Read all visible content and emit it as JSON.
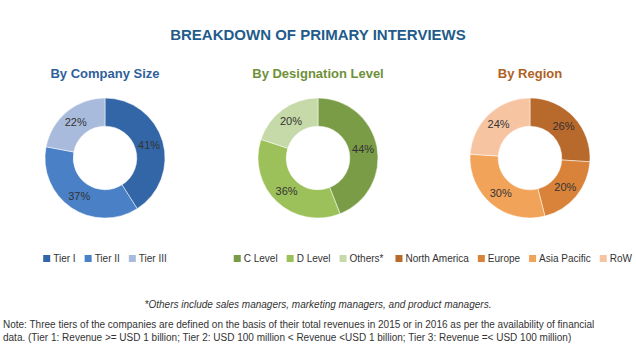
{
  "title": "BREAKDOWN OF PRIMARY INTERVIEWS",
  "chart_data": [
    {
      "type": "donut",
      "title": "By Company Size",
      "categories": [
        "Tier I",
        "Tier II",
        "Tier III"
      ],
      "values": [
        41,
        37,
        22
      ],
      "value_labels": [
        "41%",
        "37%",
        "22%"
      ],
      "colors": [
        "#3366a6",
        "#4a80c6",
        "#a9bbdd"
      ],
      "data_labels": true,
      "legend": "bottom"
    },
    {
      "type": "donut",
      "title": "By Designation Level",
      "categories": [
        "C Level",
        "D Level",
        "Others*"
      ],
      "values": [
        44,
        36,
        20
      ],
      "value_labels": [
        "44%",
        "36%",
        "20%"
      ],
      "colors": [
        "#7a9c46",
        "#9dc15a",
        "#c6d9a8"
      ],
      "data_labels": true,
      "legend": "bottom"
    },
    {
      "type": "donut",
      "title": "By Region",
      "categories": [
        "North America",
        "Europe",
        "Asia Pacific",
        "RoW"
      ],
      "values": [
        26,
        20,
        30,
        24
      ],
      "value_labels": [
        "26%",
        "20%",
        "30%",
        "24%"
      ],
      "colors": [
        "#b8692c",
        "#d9823a",
        "#f2a35a",
        "#f7c4a2"
      ],
      "data_labels": true,
      "legend": "bottom"
    }
  ],
  "footnote": "*Others include sales managers, marketing managers, and product managers.",
  "note": [
    "Note: Three tiers of the companies are defined on the basis of their total revenues in 2015 or in 2016 as per the availability of financial",
    "data. (Tier 1: Revenue >= USD 1 billion; Tier 2: USD 100 million < Revenue <USD 1 billion; Tier 3: Revenue =< USD 100 million)"
  ]
}
